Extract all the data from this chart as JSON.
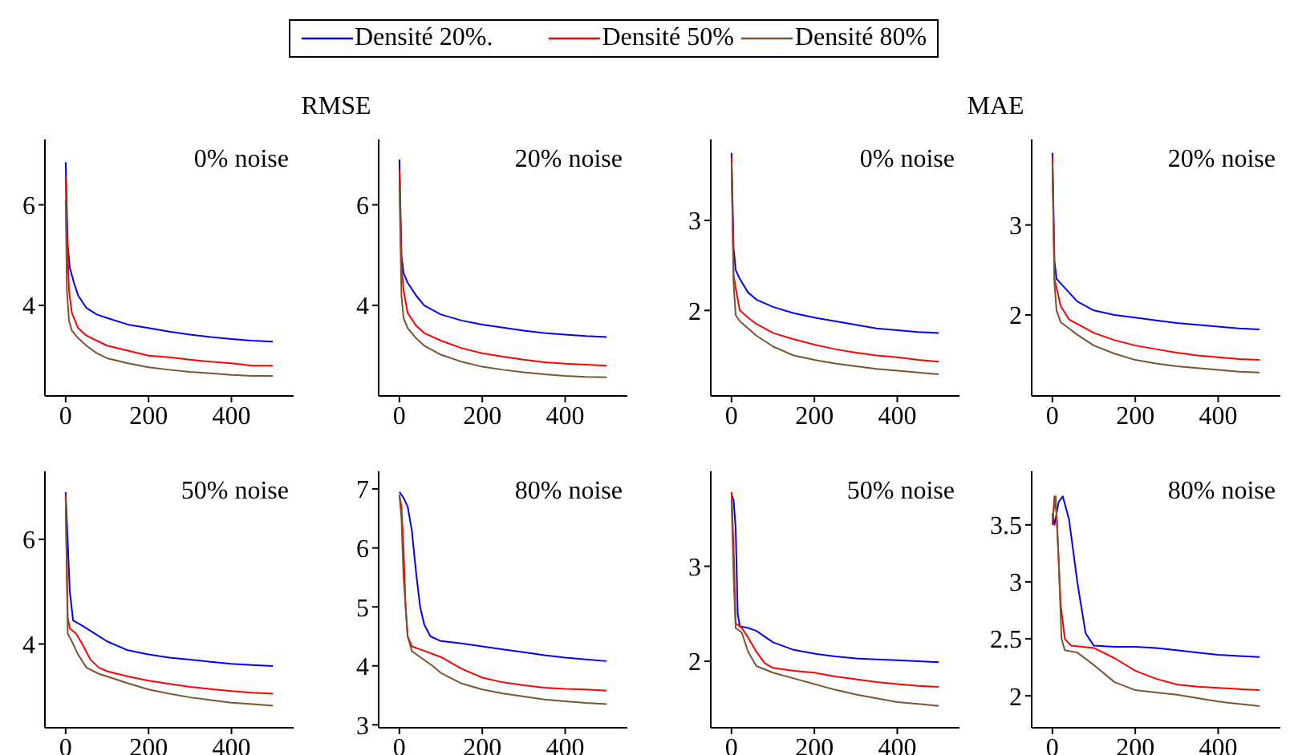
{
  "chart_data": [
    {
      "type": "line",
      "title": "RMSE",
      "annotations": [
        "0% noise"
      ],
      "legend": "top",
      "marker": "none",
      "xlim": [
        -50,
        550
      ],
      "xticks": [
        0,
        200,
        400
      ],
      "ylim": [
        2.2,
        7.3
      ],
      "yticks": [
        4,
        6
      ],
      "series": [
        {
          "name": "Densité 20%.",
          "color": "#0000ff",
          "x": [
            0,
            5,
            10,
            20,
            30,
            50,
            75,
            100,
            150,
            200,
            250,
            300,
            350,
            400,
            450,
            500
          ],
          "values": [
            6.85,
            5.2,
            4.75,
            4.45,
            4.2,
            3.95,
            3.82,
            3.75,
            3.62,
            3.55,
            3.48,
            3.42,
            3.37,
            3.33,
            3.3,
            3.28
          ]
        },
        {
          "name": "Densité 50%",
          "color": "#ff0000",
          "x": [
            0,
            3,
            8,
            15,
            30,
            50,
            75,
            100,
            150,
            200,
            250,
            300,
            350,
            400,
            450,
            500
          ],
          "values": [
            6.55,
            5.5,
            4.3,
            3.85,
            3.55,
            3.4,
            3.3,
            3.2,
            3.1,
            3.0,
            2.97,
            2.92,
            2.88,
            2.85,
            2.8,
            2.8
          ]
        },
        {
          "name": "Densité 80%",
          "color": "#7b5432",
          "x": [
            0,
            3,
            8,
            15,
            30,
            50,
            75,
            100,
            150,
            200,
            250,
            300,
            350,
            400,
            450,
            500
          ],
          "values": [
            6.1,
            4.3,
            3.7,
            3.5,
            3.35,
            3.2,
            3.05,
            2.95,
            2.85,
            2.77,
            2.72,
            2.68,
            2.65,
            2.62,
            2.6,
            2.6
          ]
        }
      ]
    },
    {
      "type": "line",
      "annotations": [
        "20% noise"
      ],
      "marker": "none",
      "xlim": [
        -50,
        550
      ],
      "xticks": [
        0,
        200,
        400
      ],
      "ylim": [
        2.2,
        7.3
      ],
      "yticks": [
        4,
        6
      ],
      "series": [
        {
          "color": "#0000ff",
          "x": [
            0,
            5,
            10,
            20,
            40,
            60,
            100,
            150,
            200,
            250,
            300,
            350,
            400,
            450,
            500
          ],
          "values": [
            6.9,
            5.0,
            4.65,
            4.45,
            4.2,
            4.0,
            3.82,
            3.7,
            3.62,
            3.56,
            3.5,
            3.45,
            3.42,
            3.39,
            3.37
          ]
        },
        {
          "color": "#ff0000",
          "x": [
            0,
            5,
            10,
            20,
            40,
            60,
            100,
            150,
            200,
            250,
            300,
            350,
            400,
            450,
            500
          ],
          "values": [
            6.7,
            4.8,
            4.3,
            3.85,
            3.6,
            3.45,
            3.3,
            3.15,
            3.05,
            2.98,
            2.92,
            2.87,
            2.84,
            2.82,
            2.8
          ]
        },
        {
          "color": "#7b5432",
          "x": [
            0,
            5,
            10,
            20,
            40,
            60,
            100,
            150,
            200,
            250,
            300,
            350,
            400,
            450,
            500
          ],
          "values": [
            6.4,
            4.2,
            3.75,
            3.55,
            3.35,
            3.2,
            3.02,
            2.88,
            2.78,
            2.72,
            2.67,
            2.63,
            2.6,
            2.58,
            2.57
          ]
        }
      ]
    },
    {
      "type": "line",
      "title": "MAE",
      "annotations": [
        "0% noise"
      ],
      "marker": "none",
      "xlim": [
        -50,
        550
      ],
      "xticks": [
        0,
        200,
        400
      ],
      "ylim": [
        1.05,
        3.9
      ],
      "yticks": [
        2,
        3
      ],
      "series": [
        {
          "color": "#0000ff",
          "x": [
            0,
            5,
            10,
            20,
            40,
            60,
            100,
            150,
            200,
            250,
            300,
            350,
            400,
            450,
            500
          ],
          "values": [
            3.75,
            2.7,
            2.45,
            2.35,
            2.2,
            2.12,
            2.04,
            1.97,
            1.92,
            1.88,
            1.84,
            1.8,
            1.78,
            1.76,
            1.75
          ]
        },
        {
          "color": "#ff0000",
          "x": [
            0,
            5,
            10,
            20,
            40,
            60,
            100,
            150,
            200,
            250,
            300,
            350,
            400,
            450,
            500
          ],
          "values": [
            3.7,
            2.4,
            2.25,
            2.0,
            1.92,
            1.85,
            1.75,
            1.68,
            1.62,
            1.57,
            1.53,
            1.5,
            1.48,
            1.45,
            1.43
          ]
        },
        {
          "color": "#7b5432",
          "x": [
            0,
            5,
            10,
            20,
            40,
            60,
            100,
            150,
            200,
            250,
            300,
            350,
            400,
            450,
            500
          ],
          "values": [
            3.65,
            2.3,
            1.95,
            1.88,
            1.8,
            1.72,
            1.6,
            1.5,
            1.45,
            1.41,
            1.38,
            1.35,
            1.33,
            1.31,
            1.29
          ]
        }
      ]
    },
    {
      "type": "line",
      "annotations": [
        "20% noise"
      ],
      "marker": "none",
      "xlim": [
        -50,
        550
      ],
      "xticks": [
        0,
        200,
        400
      ],
      "ylim": [
        1.1,
        3.95
      ],
      "yticks": [
        2,
        3
      ],
      "series": [
        {
          "color": "#0000ff",
          "x": [
            0,
            5,
            10,
            20,
            40,
            60,
            100,
            150,
            200,
            250,
            300,
            350,
            400,
            450,
            500
          ],
          "values": [
            3.8,
            2.6,
            2.4,
            2.35,
            2.25,
            2.15,
            2.05,
            2.0,
            1.97,
            1.94,
            1.91,
            1.89,
            1.87,
            1.85,
            1.84
          ]
        },
        {
          "color": "#ff0000",
          "x": [
            0,
            5,
            10,
            20,
            40,
            60,
            100,
            150,
            200,
            250,
            300,
            350,
            400,
            450,
            500
          ],
          "values": [
            3.75,
            2.4,
            2.3,
            2.1,
            1.95,
            1.9,
            1.8,
            1.72,
            1.66,
            1.62,
            1.58,
            1.55,
            1.53,
            1.51,
            1.5
          ]
        },
        {
          "color": "#7b5432",
          "x": [
            0,
            5,
            10,
            20,
            40,
            60,
            100,
            150,
            200,
            250,
            300,
            350,
            400,
            450,
            500
          ],
          "values": [
            3.7,
            2.35,
            2.05,
            1.92,
            1.85,
            1.78,
            1.66,
            1.57,
            1.5,
            1.46,
            1.43,
            1.41,
            1.39,
            1.37,
            1.36
          ]
        }
      ]
    },
    {
      "type": "line",
      "annotations": [
        "50% noise"
      ],
      "marker": "none",
      "xlim": [
        -50,
        550
      ],
      "xticks": [
        0,
        200,
        400
      ],
      "ylim": [
        2.4,
        7.3
      ],
      "yticks": [
        4,
        6
      ],
      "series": [
        {
          "color": "#0000ff",
          "x": [
            0,
            10,
            18,
            40,
            70,
            100,
            150,
            200,
            250,
            300,
            350,
            400,
            450,
            500
          ],
          "values": [
            6.9,
            5.0,
            4.45,
            4.35,
            4.2,
            4.05,
            3.88,
            3.8,
            3.74,
            3.7,
            3.66,
            3.62,
            3.6,
            3.58
          ]
        },
        {
          "color": "#ff0000",
          "x": [
            0,
            5,
            10,
            25,
            40,
            60,
            80,
            100,
            150,
            200,
            250,
            300,
            350,
            400,
            450,
            500
          ],
          "values": [
            6.85,
            4.5,
            4.3,
            4.2,
            4.0,
            3.7,
            3.55,
            3.48,
            3.38,
            3.3,
            3.24,
            3.18,
            3.14,
            3.1,
            3.07,
            3.05
          ]
        },
        {
          "color": "#7b5432",
          "x": [
            0,
            5,
            15,
            30,
            50,
            80,
            100,
            150,
            200,
            250,
            300,
            350,
            400,
            450,
            500
          ],
          "values": [
            6.8,
            4.2,
            4.05,
            3.8,
            3.55,
            3.43,
            3.38,
            3.25,
            3.13,
            3.05,
            2.98,
            2.93,
            2.88,
            2.85,
            2.82
          ]
        }
      ]
    },
    {
      "type": "line",
      "annotations": [
        "80% noise"
      ],
      "marker": "none",
      "xlim": [
        -50,
        550
      ],
      "xticks": [
        0,
        200,
        400
      ],
      "ylim": [
        2.95,
        7.3
      ],
      "yticks": [
        3,
        4,
        5,
        6,
        7
      ],
      "series": [
        {
          "color": "#0000ff",
          "x": [
            0,
            10,
            20,
            30,
            40,
            50,
            60,
            75,
            100,
            150,
            200,
            250,
            300,
            350,
            400,
            450,
            500
          ],
          "values": [
            6.95,
            6.85,
            6.7,
            6.3,
            5.6,
            5.0,
            4.7,
            4.5,
            4.42,
            4.38,
            4.33,
            4.28,
            4.23,
            4.18,
            4.14,
            4.11,
            4.08
          ]
        },
        {
          "color": "#ff0000",
          "x": [
            0,
            5,
            10,
            15,
            20,
            30,
            50,
            100,
            150,
            200,
            250,
            300,
            350,
            400,
            450,
            500
          ],
          "values": [
            6.9,
            6.7,
            6.0,
            5.0,
            4.5,
            4.33,
            4.28,
            4.15,
            3.95,
            3.8,
            3.72,
            3.67,
            3.63,
            3.61,
            3.6,
            3.58
          ]
        },
        {
          "color": "#7b5432",
          "x": [
            0,
            5,
            10,
            20,
            30,
            50,
            80,
            100,
            150,
            200,
            250,
            300,
            350,
            400,
            450,
            500
          ],
          "values": [
            6.9,
            6.5,
            5.5,
            4.5,
            4.25,
            4.15,
            4.0,
            3.88,
            3.7,
            3.6,
            3.53,
            3.48,
            3.43,
            3.4,
            3.37,
            3.35
          ]
        }
      ]
    },
    {
      "type": "line",
      "annotations": [
        "50% noise"
      ],
      "marker": "none",
      "xlim": [
        -50,
        550
      ],
      "xticks": [
        0,
        200,
        400
      ],
      "ylim": [
        1.3,
        4.0
      ],
      "yticks": [
        2,
        3
      ],
      "series": [
        {
          "color": "#0000ff",
          "x": [
            0,
            5,
            10,
            15,
            20,
            40,
            60,
            100,
            150,
            200,
            250,
            300,
            350,
            400,
            450,
            500
          ],
          "values": [
            3.75,
            3.7,
            3.4,
            2.5,
            2.37,
            2.35,
            2.32,
            2.2,
            2.12,
            2.08,
            2.05,
            2.03,
            2.02,
            2.01,
            2.0,
            1.99
          ]
        },
        {
          "color": "#ff0000",
          "x": [
            0,
            5,
            10,
            25,
            40,
            60,
            80,
            100,
            150,
            200,
            250,
            300,
            350,
            400,
            450,
            500
          ],
          "values": [
            3.78,
            3.2,
            2.4,
            2.35,
            2.25,
            2.1,
            1.98,
            1.93,
            1.9,
            1.88,
            1.84,
            1.81,
            1.78,
            1.76,
            1.74,
            1.73
          ]
        },
        {
          "color": "#7b5432",
          "x": [
            0,
            5,
            10,
            25,
            40,
            60,
            100,
            150,
            200,
            250,
            300,
            350,
            400,
            450,
            500
          ],
          "values": [
            3.7,
            2.9,
            2.35,
            2.3,
            2.1,
            1.95,
            1.88,
            1.82,
            1.76,
            1.7,
            1.65,
            1.61,
            1.57,
            1.55,
            1.53
          ]
        }
      ]
    },
    {
      "type": "line",
      "annotations": [
        "80% noise"
      ],
      "marker": "none",
      "xlim": [
        -50,
        550
      ],
      "xticks": [
        0,
        200,
        400
      ],
      "ylim": [
        1.72,
        3.97
      ],
      "yticks": [
        2,
        2.5,
        3,
        3.5
      ],
      "series": [
        {
          "color": "#0000ff",
          "x": [
            0,
            5,
            15,
            25,
            40,
            60,
            80,
            100,
            150,
            200,
            250,
            300,
            350,
            400,
            450,
            500
          ],
          "values": [
            3.6,
            3.5,
            3.7,
            3.75,
            3.55,
            3.0,
            2.55,
            2.44,
            2.43,
            2.43,
            2.42,
            2.4,
            2.38,
            2.36,
            2.35,
            2.34
          ]
        },
        {
          "color": "#ff0000",
          "x": [
            0,
            5,
            10,
            20,
            30,
            45,
            100,
            150,
            200,
            250,
            300,
            350,
            400,
            450,
            500
          ],
          "values": [
            3.5,
            3.75,
            3.6,
            2.8,
            2.5,
            2.44,
            2.42,
            2.33,
            2.22,
            2.15,
            2.1,
            2.08,
            2.07,
            2.06,
            2.05
          ]
        },
        {
          "color": "#7b5432",
          "x": [
            0,
            8,
            15,
            22,
            30,
            60,
            100,
            150,
            200,
            250,
            300,
            350,
            400,
            450,
            500
          ],
          "values": [
            3.55,
            3.75,
            3.2,
            2.5,
            2.4,
            2.38,
            2.27,
            2.12,
            2.05,
            2.03,
            2.01,
            1.98,
            1.95,
            1.93,
            1.91
          ]
        }
      ]
    }
  ]
}
